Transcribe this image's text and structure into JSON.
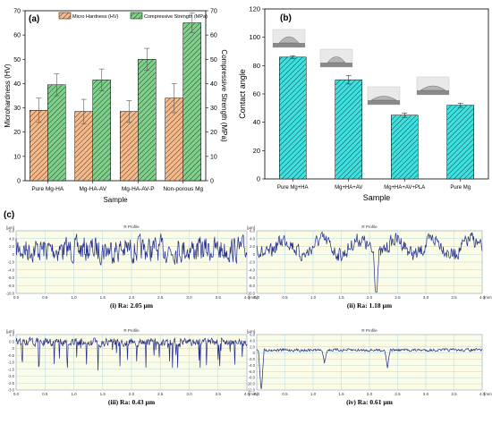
{
  "chart_data": [
    {
      "panel_label": "(a)",
      "type": "bar",
      "categories": [
        "Pure Mg-HA",
        "Mg-HA-AV",
        "Mg-HA-AV-P",
        "Non-porous Mg"
      ],
      "xlabel": "Sample",
      "ylabel": "Microhardness (HV)",
      "y2label": "Compressive Strength (MPa)",
      "ylim": [
        0,
        70
      ],
      "y2lim": [
        0,
        70
      ],
      "yticks": [
        "0",
        "10",
        "20",
        "30",
        "40",
        "50",
        "60",
        "70"
      ],
      "legend_position": "top",
      "series": [
        {
          "name": "Micro Hardness (HV)",
          "values": [
            29,
            28.5,
            28.5,
            34
          ],
          "errors": [
            5,
            5,
            4.5,
            6
          ],
          "color": "#f6b98a",
          "axis": "left"
        },
        {
          "name": "Compressive Strength (MPa)",
          "values": [
            39.5,
            41.5,
            50,
            65
          ],
          "errors": [
            4.5,
            4.5,
            4.5,
            4
          ],
          "color": "#7fd08a",
          "axis": "right"
        }
      ]
    },
    {
      "panel_label": "(b)",
      "type": "bar",
      "categories": [
        "Pure Mg+HA",
        "Mg+HA+AV",
        "Mg+HA+AV+PLA",
        "Pure Mg"
      ],
      "xlabel": "Sample",
      "ylabel": "Contact angle",
      "ylim": [
        0,
        120
      ],
      "yticks": [
        "0",
        "20",
        "40",
        "60",
        "80",
        "100",
        "120"
      ],
      "series": [
        {
          "values": [
            86,
            70,
            45,
            52
          ],
          "errors": [
            1,
            3,
            1.5,
            1.5
          ],
          "color": "#3ee0e0"
        }
      ]
    },
    {
      "panel_label": "(c)",
      "type": "line",
      "subplots": [
        {
          "title": "R Profile",
          "caption": "(i) Ra: 2.05 µm",
          "xlabel": "[mm]",
          "ylabel": "[µm]",
          "xlim": [
            0,
            4
          ],
          "ylim": [
            -10,
            6
          ],
          "xticks": [
            "0.0",
            "0.5",
            "1.0",
            "1.5",
            "2.0",
            "2.5",
            "3.0",
            "3.5",
            "4.0"
          ],
          "yticks": [
            "6.0",
            "4.0",
            "2.0",
            "0",
            "-2.0",
            "-4.0",
            "-6.0",
            "-8.0",
            "-10.0"
          ]
        },
        {
          "title": "R Profile",
          "caption": "(ii) Ra: 1.18 µm",
          "xlabel": "[mm]",
          "ylabel": "[µm]",
          "xlim": [
            0,
            4
          ],
          "ylim": [
            -10,
            6
          ],
          "xticks": [
            "0.0",
            "0.5",
            "1.0",
            "1.5",
            "2.0",
            "2.5",
            "3.0",
            "3.5",
            "4.0"
          ],
          "yticks": [
            "6.0",
            "4.0",
            "2.0",
            "0",
            "-2.0",
            "-4.0",
            "-6.0",
            "-8.0",
            "-10.0"
          ]
        },
        {
          "title": "R Profile",
          "caption": "(iii) Ra: 0.43 µm",
          "xlabel": "[mm]",
          "ylabel": "[µm]",
          "xlim": [
            0,
            4
          ],
          "ylim": [
            -3,
            1
          ],
          "xticks": [
            "0.0",
            "0.5",
            "1.0",
            "1.5",
            "2.0",
            "2.5",
            "3.0",
            "3.5",
            "4.0"
          ],
          "yticks": [
            "1.0",
            "0.5",
            "0",
            "-0.5",
            "-1.0",
            "-1.5",
            "-2.0",
            "-2.5",
            "-3.0"
          ]
        },
        {
          "title": "R Profile",
          "caption": "(iv) Ra: 0.61 µm",
          "xlabel": "[mm]",
          "ylabel": "[µm]",
          "xlim": [
            0,
            4
          ],
          "ylim": [
            -12,
            6
          ],
          "xticks": [
            "0.0",
            "0.5",
            "1.0",
            "1.5",
            "2.0",
            "2.5",
            "3.0",
            "3.5",
            "4.0"
          ],
          "yticks": [
            "6.0",
            "4.0",
            "2.0",
            "0",
            "-2.0",
            "-4.0",
            "-6.0",
            "-8.0",
            "-10.0",
            "-12.0"
          ]
        }
      ]
    }
  ],
  "colors": {
    "profile_line": "#1f2a8c",
    "profile_background": "#fbfbe6",
    "profile_grid": "#9fd0e6"
  }
}
